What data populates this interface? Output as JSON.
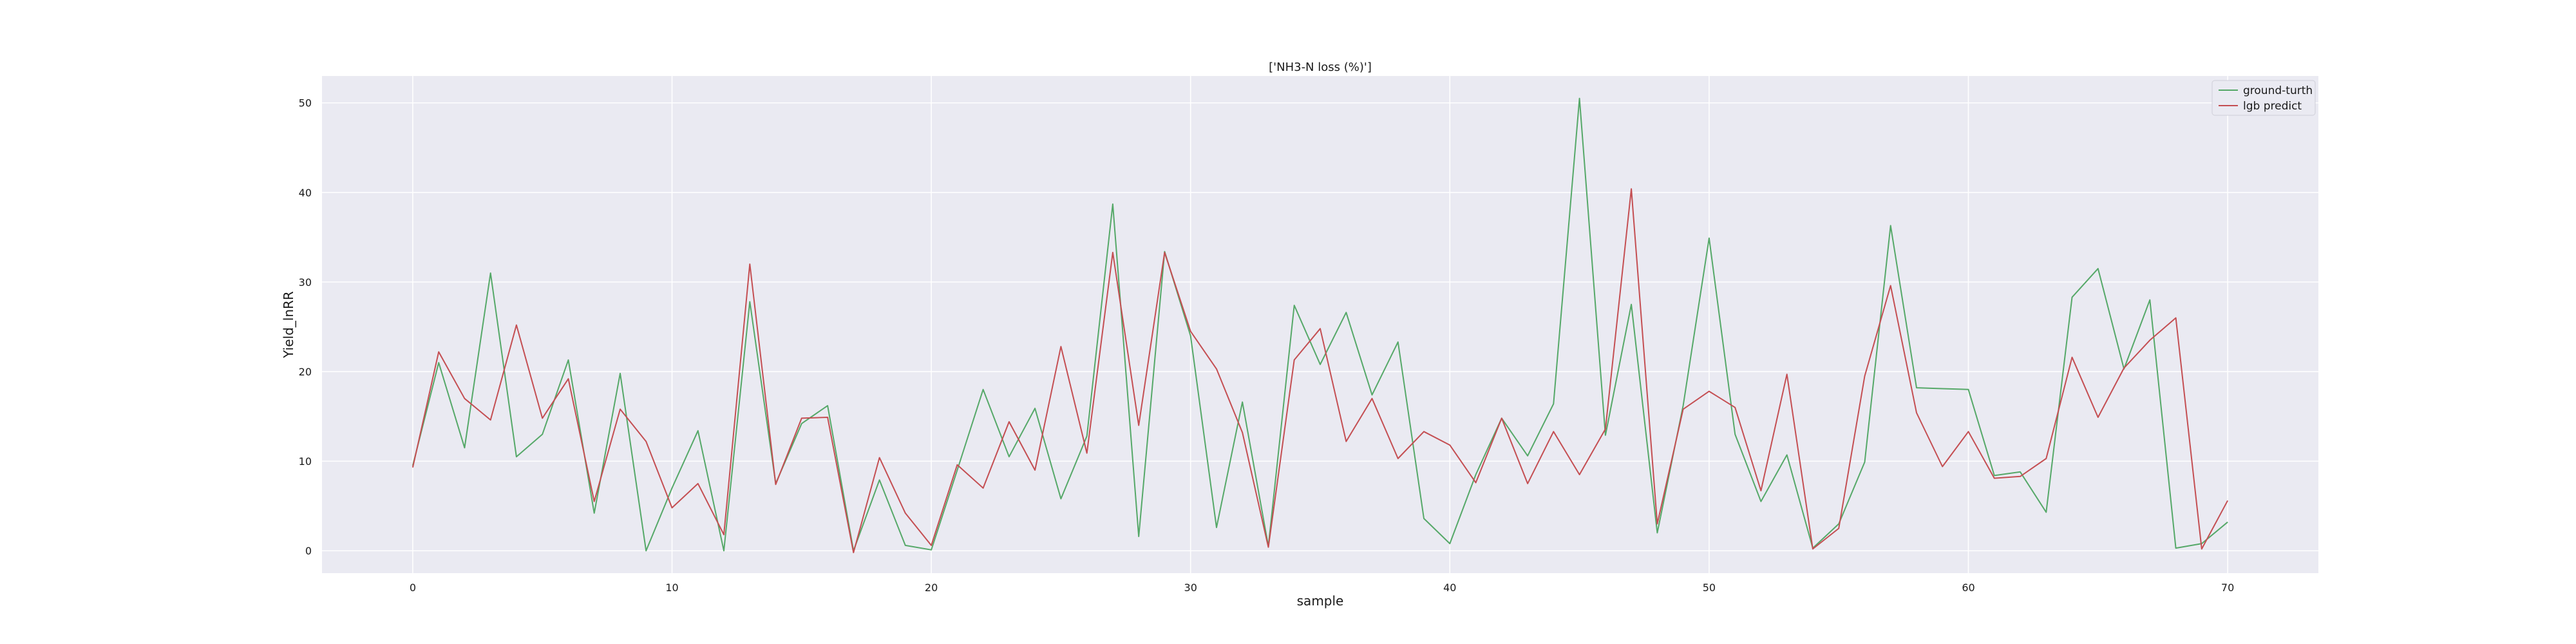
{
  "chart_data": {
    "type": "line",
    "title": "['NH3-N loss (%)']",
    "xlabel": "sample",
    "ylabel": "Yield_lnRR",
    "xlim": [
      -3.5,
      73.5
    ],
    "ylim": [
      -2.5,
      53.0
    ],
    "xticks": [
      0,
      10,
      20,
      30,
      40,
      50,
      60,
      70
    ],
    "yticks": [
      0,
      10,
      20,
      30,
      40,
      50
    ],
    "grid": true,
    "legend_position": "top-right",
    "background": "#eaeaf2",
    "series": [
      {
        "name": "ground-turth",
        "color": "#55a868",
        "x": [
          0,
          1,
          2,
          3,
          4,
          5,
          6,
          7,
          8,
          9,
          10,
          11,
          12,
          13,
          14,
          15,
          16,
          17,
          18,
          19,
          20,
          21,
          22,
          23,
          24,
          25,
          26,
          27,
          28,
          29,
          30,
          31,
          32,
          33,
          34,
          35,
          36,
          37,
          38,
          39,
          40,
          41,
          42,
          43,
          44,
          45,
          46,
          47,
          48,
          49,
          50,
          51,
          52,
          53,
          54,
          55,
          56,
          57,
          58,
          59,
          60,
          61,
          62,
          63,
          64,
          65,
          66,
          67,
          68,
          69,
          70
        ],
        "values": [
          9.5,
          21.0,
          11.5,
          31.0,
          10.5,
          13.0,
          21.3,
          4.2,
          19.8,
          0.0,
          7.0,
          13.4,
          0.0,
          27.8,
          7.5,
          14.2,
          16.2,
          0.0,
          7.9,
          0.6,
          0.1,
          9.0,
          18.0,
          10.5,
          15.9,
          5.8,
          12.8,
          38.7,
          1.6,
          33.4,
          24.0,
          2.6,
          16.6,
          0.5,
          27.4,
          20.8,
          26.6,
          17.4,
          23.3,
          3.6,
          0.8,
          8.5,
          14.8,
          10.6,
          16.4,
          50.5,
          12.9,
          27.5,
          2.0,
          16.2,
          34.9,
          13.0,
          5.5,
          10.7,
          0.3,
          3.0,
          9.9,
          36.3,
          18.2,
          18.1,
          18.0,
          8.4,
          8.8,
          4.3,
          28.3,
          31.5,
          20.3,
          28.0,
          0.3,
          0.8,
          3.2
        ]
      },
      {
        "name": "lgb predict",
        "color": "#c44e52",
        "x": [
          0,
          1,
          2,
          3,
          4,
          5,
          6,
          7,
          8,
          9,
          10,
          11,
          12,
          13,
          14,
          15,
          16,
          17,
          18,
          19,
          20,
          21,
          22,
          23,
          24,
          25,
          26,
          27,
          28,
          29,
          30,
          31,
          32,
          33,
          34,
          35,
          36,
          37,
          38,
          39,
          40,
          41,
          42,
          43,
          44,
          45,
          46,
          47,
          48,
          49,
          50,
          51,
          52,
          53,
          54,
          55,
          56,
          57,
          58,
          59,
          60,
          61,
          62,
          63,
          64,
          65,
          66,
          67,
          68,
          69,
          70
        ],
        "values": [
          9.3,
          22.2,
          17.0,
          14.6,
          25.2,
          14.8,
          19.2,
          5.5,
          15.8,
          12.2,
          4.8,
          7.5,
          1.8,
          32.0,
          7.4,
          14.8,
          14.9,
          -0.2,
          10.4,
          4.2,
          0.6,
          9.6,
          7.0,
          14.4,
          9.0,
          22.8,
          10.9,
          33.3,
          14.0,
          33.3,
          24.5,
          20.3,
          13.2,
          0.4,
          21.3,
          24.8,
          12.2,
          17.0,
          10.3,
          13.3,
          11.8,
          7.6,
          14.8,
          7.5,
          13.3,
          8.5,
          13.6,
          40.4,
          3.0,
          15.8,
          17.8,
          16.0,
          6.7,
          19.7,
          0.2,
          2.5,
          19.5,
          29.6,
          15.4,
          9.4,
          13.3,
          8.1,
          8.3,
          10.3,
          21.6,
          14.9,
          20.4,
          23.5,
          26.0,
          0.2,
          5.6
        ]
      }
    ]
  }
}
